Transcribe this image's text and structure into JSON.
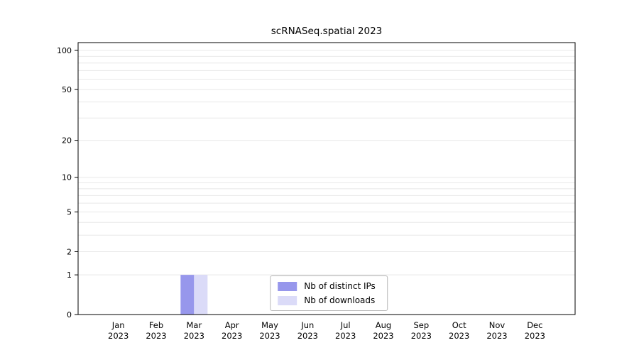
{
  "chart_data": {
    "type": "bar",
    "title": "scRNASeq.spatial 2023",
    "categories": [
      "Jan",
      "Feb",
      "Mar",
      "Apr",
      "May",
      "Jun",
      "Jul",
      "Aug",
      "Sep",
      "Oct",
      "Nov",
      "Dec"
    ],
    "year_label": "2023",
    "series": [
      {
        "name": "Nb of distinct IPs",
        "color": "#9797ec",
        "values": [
          0,
          0,
          1,
          0,
          0,
          0,
          0,
          0,
          0,
          0,
          0,
          0
        ]
      },
      {
        "name": "Nb of downloads",
        "color": "#dbdbf8",
        "values": [
          0,
          0,
          1,
          0,
          0,
          0,
          0,
          0,
          0,
          0,
          0,
          0
        ]
      }
    ],
    "yticks": [
      0,
      1,
      2,
      5,
      10,
      20,
      50,
      100
    ],
    "ylim": [
      0,
      100
    ],
    "scale": "log1p",
    "grid": true,
    "gridline_values": [
      1,
      2,
      3,
      4,
      5,
      6,
      7,
      8,
      9,
      10,
      20,
      30,
      40,
      50,
      60,
      70,
      80,
      90,
      100
    ],
    "legend_position": "bottom-center-inside"
  }
}
